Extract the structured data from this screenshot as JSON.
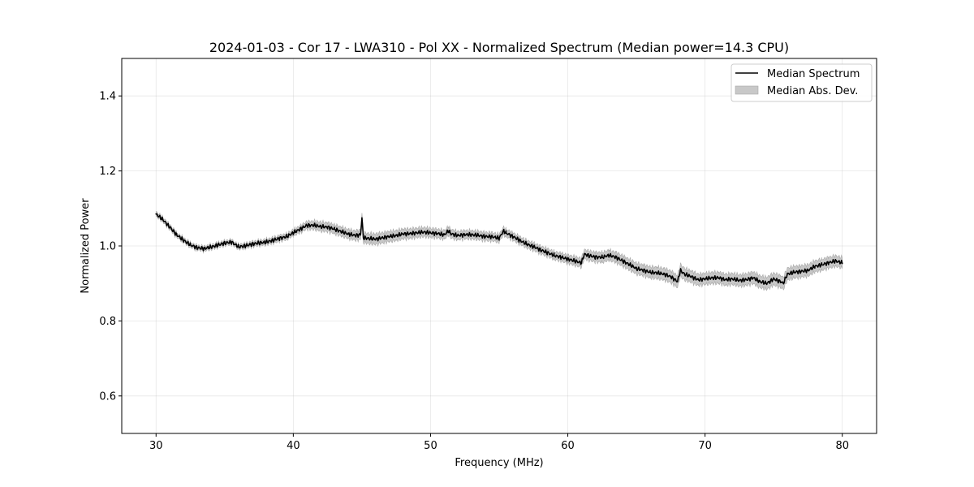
{
  "chart_data": {
    "type": "line",
    "title": "2024-01-03 - Cor 17 - LWA310 - Pol XX - Normalized Spectrum (Median power=14.3 CPU)",
    "xlabel": "Frequency (MHz)",
    "ylabel": "Normalized Power",
    "xlim": [
      27.5,
      82.5
    ],
    "ylim": [
      0.5,
      1.5
    ],
    "xticks": [
      30,
      40,
      50,
      60,
      70,
      80
    ],
    "xtick_labels": [
      "30",
      "40",
      "50",
      "60",
      "70",
      "80"
    ],
    "yticks": [
      0.6,
      0.8,
      1.0,
      1.2,
      1.4
    ],
    "ytick_labels": [
      "0.6",
      "0.8",
      "1.0",
      "1.2",
      "1.4"
    ],
    "grid": true,
    "legend_position": "top-right",
    "legend": [
      {
        "label": "Median Spectrum",
        "kind": "line",
        "color": "#000000"
      },
      {
        "label": "Median Abs. Dev.",
        "kind": "band",
        "color": "#c8c8c8"
      }
    ],
    "series": [
      {
        "name": "Median Spectrum",
        "x": [
          30.0,
          30.5,
          31.0,
          31.5,
          32.0,
          32.5,
          33.0,
          33.5,
          34.0,
          34.5,
          35.0,
          35.5,
          36.0,
          36.5,
          37.0,
          37.5,
          38.0,
          38.5,
          39.0,
          39.5,
          40.0,
          40.5,
          41.0,
          41.5,
          42.0,
          42.5,
          43.0,
          43.5,
          44.0,
          44.5,
          44.9,
          45.0,
          45.1,
          45.5,
          46.0,
          46.5,
          47.0,
          47.5,
          48.0,
          48.5,
          49.0,
          49.5,
          50.0,
          50.5,
          51.0,
          51.3,
          51.5,
          52.0,
          52.5,
          53.0,
          53.5,
          54.0,
          54.5,
          55.0,
          55.3,
          55.5,
          56.0,
          56.5,
          57.0,
          57.5,
          58.0,
          58.5,
          59.0,
          59.5,
          60.0,
          60.5,
          61.0,
          61.2,
          61.5,
          62.0,
          62.5,
          63.0,
          63.5,
          64.0,
          64.5,
          65.0,
          65.5,
          66.0,
          66.5,
          67.0,
          67.5,
          68.0,
          68.2,
          68.5,
          69.0,
          69.5,
          70.0,
          70.5,
          71.0,
          71.5,
          72.0,
          72.5,
          73.0,
          73.5,
          74.0,
          74.5,
          75.0,
          75.5,
          75.7,
          76.0,
          76.5,
          77.0,
          77.5,
          78.0,
          78.5,
          79.0,
          79.5,
          80.0
        ],
        "y": [
          1.085,
          1.07,
          1.05,
          1.03,
          1.015,
          1.003,
          0.995,
          0.993,
          0.997,
          1.002,
          1.008,
          1.01,
          0.998,
          1.0,
          1.005,
          1.008,
          1.01,
          1.015,
          1.02,
          1.025,
          1.035,
          1.045,
          1.055,
          1.055,
          1.052,
          1.05,
          1.045,
          1.038,
          1.032,
          1.028,
          1.03,
          1.075,
          1.022,
          1.02,
          1.018,
          1.022,
          1.025,
          1.028,
          1.032,
          1.033,
          1.035,
          1.037,
          1.035,
          1.033,
          1.03,
          1.04,
          1.032,
          1.028,
          1.03,
          1.03,
          1.028,
          1.025,
          1.025,
          1.02,
          1.04,
          1.035,
          1.025,
          1.015,
          1.005,
          0.998,
          0.99,
          0.982,
          0.975,
          0.97,
          0.965,
          0.96,
          0.955,
          0.978,
          0.975,
          0.97,
          0.97,
          0.975,
          0.97,
          0.96,
          0.95,
          0.94,
          0.935,
          0.93,
          0.928,
          0.925,
          0.918,
          0.905,
          0.935,
          0.925,
          0.918,
          0.91,
          0.912,
          0.915,
          0.915,
          0.91,
          0.912,
          0.908,
          0.91,
          0.915,
          0.905,
          0.9,
          0.912,
          0.905,
          0.9,
          0.925,
          0.93,
          0.932,
          0.935,
          0.945,
          0.95,
          0.955,
          0.96,
          0.955
        ]
      }
    ],
    "mad_band": {
      "name": "Median Abs. Dev.",
      "x": [
        30.0,
        33.0,
        36.0,
        38.0,
        40.0,
        42.0,
        44.0,
        45.0,
        46.0,
        48.0,
        50.0,
        52.0,
        54.0,
        56.0,
        58.0,
        60.0,
        62.0,
        64.0,
        66.0,
        68.0,
        70.0,
        72.0,
        74.0,
        76.0,
        78.0,
        80.0
      ],
      "halfwidth": [
        0.006,
        0.006,
        0.006,
        0.007,
        0.008,
        0.012,
        0.012,
        0.013,
        0.014,
        0.013,
        0.012,
        0.011,
        0.011,
        0.01,
        0.01,
        0.011,
        0.013,
        0.014,
        0.015,
        0.016,
        0.015,
        0.015,
        0.016,
        0.016,
        0.015,
        0.014
      ]
    }
  }
}
